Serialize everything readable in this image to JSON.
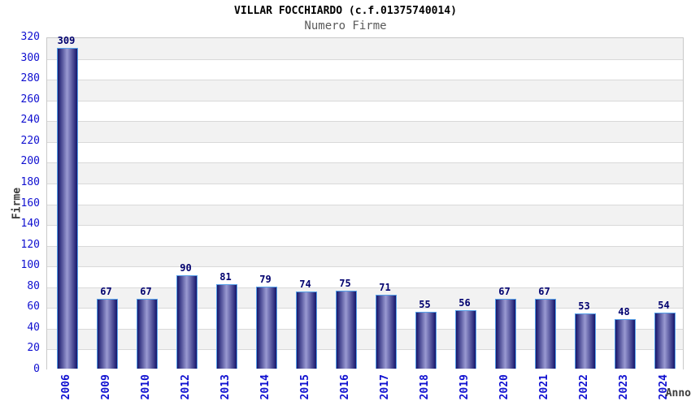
{
  "chart_data": {
    "type": "bar",
    "title": "VILLAR FOCCHIARDO (c.f.01375740014)",
    "subtitle": "Numero Firme",
    "xlabel": "Anno",
    "ylabel": "Firme",
    "categories": [
      "2006",
      "2009",
      "2010",
      "2012",
      "2013",
      "2014",
      "2015",
      "2016",
      "2017",
      "2018",
      "2019",
      "2020",
      "2021",
      "2022",
      "2023",
      "2024"
    ],
    "values": [
      309,
      67,
      67,
      90,
      81,
      79,
      74,
      75,
      71,
      55,
      56,
      67,
      67,
      53,
      48,
      54
    ],
    "ylim": [
      0,
      320
    ],
    "ytick_step": 20,
    "legend": "none",
    "grid": "horizontal, alternating shaded bands every 20 units",
    "bar_value_labels": true,
    "colors": {
      "title": "#000000",
      "subtitle": "#5a5a5a",
      "axis_title": "#3c3c3c",
      "tick_label": "#0f0fd0",
      "value_label": "#00006e",
      "bar_dark": "#16166b",
      "bar_light": "#9a9ad2",
      "bar_border": "#56a0e8",
      "band_gray": "#f2f2f2",
      "band_white": "#ffffff",
      "gridline": "#d9d9d9",
      "frame_border": "#c9c9c9",
      "background": "#ffffff"
    }
  }
}
